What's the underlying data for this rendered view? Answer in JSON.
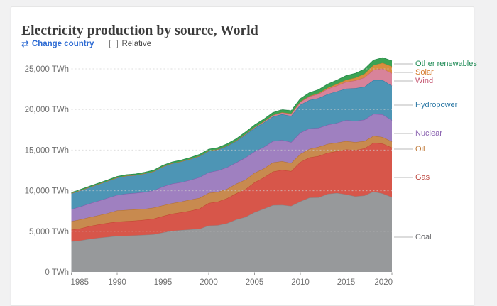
{
  "page": {
    "background": "#f1f1f2",
    "card_background": "#ffffff"
  },
  "header": {
    "title": "Electricity production by source, World",
    "controls": {
      "change_country_icon": "⇄",
      "change_country_label": "Change country",
      "change_country_color": "#2d6bd3",
      "relative_label": "Relative",
      "relative_checked": false
    }
  },
  "chart_data": {
    "type": "area",
    "stacked": true,
    "title": "Electricity production by source, World",
    "unit": "TWh",
    "grid": "dashed horizontal",
    "legend_position": "right",
    "xlim": [
      1985,
      2020
    ],
    "ylim": [
      0,
      25000
    ],
    "x_ticks": [
      1985,
      1990,
      1995,
      2000,
      2005,
      2010,
      2015,
      2020
    ],
    "y_ticks": [
      {
        "value": 0,
        "label": "0 TWh"
      },
      {
        "value": 5000,
        "label": "5,000 TWh"
      },
      {
        "value": 10000,
        "label": "10,000 TWh"
      },
      {
        "value": 15000,
        "label": "15,000 TWh"
      },
      {
        "value": 20000,
        "label": "20,000 TWh"
      },
      {
        "value": 25000,
        "label": "25,000 TWh"
      }
    ],
    "x": [
      1985,
      1986,
      1987,
      1988,
      1989,
      1990,
      1991,
      1992,
      1993,
      1994,
      1995,
      1996,
      1997,
      1998,
      1999,
      2000,
      2001,
      2002,
      2003,
      2004,
      2005,
      2006,
      2007,
      2008,
      2009,
      2010,
      2011,
      2012,
      2013,
      2014,
      2015,
      2016,
      2017,
      2018,
      2019,
      2020
    ],
    "series": [
      {
        "name": "Coal",
        "color": "#97999b",
        "stroke": "#85878a",
        "label_color": "#666669",
        "values": [
          3750,
          3860,
          4060,
          4200,
          4300,
          4430,
          4460,
          4500,
          4550,
          4620,
          4850,
          5060,
          5150,
          5230,
          5300,
          5710,
          5750,
          5990,
          6440,
          6750,
          7340,
          7770,
          8220,
          8250,
          8120,
          8670,
          9140,
          9170,
          9610,
          9710,
          9540,
          9300,
          9400,
          9900,
          9650,
          9200
        ]
      },
      {
        "name": "Gas",
        "color": "#d7564a",
        "stroke": "#c0432f",
        "label_color": "#bd4840",
        "values": [
          1440,
          1500,
          1580,
          1650,
          1730,
          1750,
          1790,
          1810,
          1870,
          1940,
          2020,
          2100,
          2180,
          2300,
          2500,
          2770,
          2900,
          3070,
          3230,
          3420,
          3680,
          3850,
          4130,
          4300,
          4290,
          4860,
          4950,
          5100,
          5060,
          5150,
          5540,
          5700,
          5800,
          6000,
          6150,
          6100
        ]
      },
      {
        "name": "Oil",
        "color": "#c88a4f",
        "stroke": "#b06f2d",
        "label_color": "#bd7430",
        "values": [
          1040,
          1100,
          1090,
          1120,
          1210,
          1380,
          1380,
          1390,
          1330,
          1350,
          1320,
          1300,
          1320,
          1360,
          1310,
          1240,
          1200,
          1160,
          1180,
          1180,
          1170,
          1100,
          1120,
          1080,
          1000,
          980,
          1060,
          1120,
          1080,
          1060,
          1030,
          970,
          900,
          850,
          800,
          740
        ]
      },
      {
        "name": "Nuclear",
        "color": "#9f80c0",
        "stroke": "#8559a9",
        "label_color": "#8a62b0",
        "values": [
          1490,
          1590,
          1700,
          1790,
          1880,
          1910,
          1990,
          2010,
          2080,
          2120,
          2320,
          2400,
          2390,
          2430,
          2540,
          2540,
          2640,
          2660,
          2610,
          2720,
          2630,
          2650,
          2620,
          2600,
          2560,
          2630,
          2520,
          2350,
          2360,
          2420,
          2570,
          2610,
          2640,
          2700,
          2790,
          2620
        ]
      },
      {
        "name": "Hydropower",
        "color": "#4d95b5",
        "stroke": "#2e7ca2",
        "label_color": "#2a77a4",
        "values": [
          1950,
          2000,
          2010,
          2070,
          2080,
          2140,
          2210,
          2200,
          2280,
          2340,
          2460,
          2500,
          2550,
          2580,
          2610,
          2620,
          2560,
          2610,
          2630,
          2800,
          2890,
          3000,
          3030,
          3180,
          3230,
          3440,
          3490,
          3650,
          3790,
          3890,
          3880,
          4030,
          4060,
          4170,
          4220,
          4250
        ]
      },
      {
        "name": "Wind",
        "color": "#d8839a",
        "stroke": "#c45a76",
        "label_color": "#c45570",
        "values": [
          0,
          1,
          1,
          2,
          3,
          4,
          4,
          5,
          6,
          7,
          8,
          9,
          12,
          16,
          21,
          31,
          38,
          52,
          63,
          85,
          104,
          133,
          171,
          221,
          276,
          346,
          437,
          526,
          646,
          712,
          831,
          960,
          1140,
          1270,
          1420,
          1550
        ]
      },
      {
        "name": "Solar",
        "color": "#d98e3f",
        "stroke": "#c9752a",
        "label_color": "#d57b2d",
        "values": [
          0,
          0,
          0,
          0,
          0,
          0,
          1,
          1,
          1,
          1,
          1,
          1,
          1,
          1,
          1,
          1,
          1,
          2,
          2,
          3,
          4,
          5,
          7,
          12,
          20,
          32,
          63,
          97,
          132,
          198,
          256,
          328,
          444,
          574,
          705,
          830
        ]
      },
      {
        "name": "Other renewables",
        "color": "#3ca354",
        "stroke": "#2b8f4f",
        "label_color": "#1d8a54",
        "values": [
          100,
          105,
          110,
          116,
          123,
          131,
          135,
          139,
          143,
          147,
          152,
          160,
          168,
          177,
          187,
          197,
          207,
          218,
          234,
          252,
          271,
          290,
          310,
          330,
          350,
          370,
          400,
          430,
          455,
          480,
          512,
          545,
          580,
          615,
          650,
          680
        ]
      }
    ]
  }
}
